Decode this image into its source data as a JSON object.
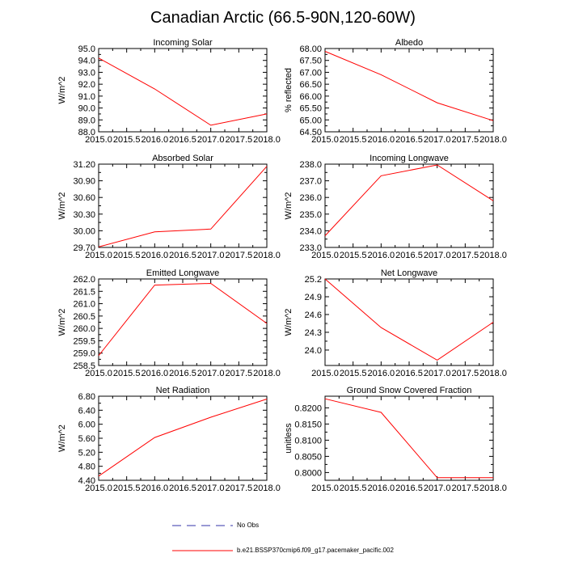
{
  "title": "Canadian Arctic (66.5-90N,120-60W)",
  "colors": {
    "model": "#ff0000",
    "obs": "#3333aa",
    "axis": "#000000"
  },
  "legend": [
    {
      "label": "No Obs",
      "style": "dashed",
      "color": "#3333aa"
    },
    {
      "label": "b.e21.BSSP370cmip6.f09_g17.pacemaker_pacific.002",
      "style": "solid",
      "color": "#ff0000"
    }
  ],
  "chart_data": [
    {
      "type": "line",
      "title": "Incoming Solar",
      "ylabel": "W/m^2",
      "x": [
        2015,
        2016,
        2017,
        2018
      ],
      "values": [
        94.2,
        91.6,
        88.55,
        89.5
      ],
      "xlim": [
        2015,
        2018
      ],
      "ylim": [
        88,
        95
      ],
      "xticks": [
        "2015.0",
        "2015.5",
        "2016.0",
        "2016.5",
        "2017.0",
        "2017.5",
        "2018.0"
      ],
      "yticks": [
        "88.0",
        "89.0",
        "90.0",
        "91.0",
        "92.0",
        "93.0",
        "94.0",
        "95.0"
      ]
    },
    {
      "type": "line",
      "title": "Albedo",
      "ylabel": "% reflected",
      "x": [
        2015,
        2016,
        2017,
        2018
      ],
      "values": [
        67.88,
        66.9,
        65.72,
        64.97
      ],
      "xlim": [
        2015,
        2018
      ],
      "ylim": [
        64.5,
        68
      ],
      "xticks": [
        "2015.0",
        "2015.5",
        "2016.0",
        "2016.5",
        "2017.0",
        "2017.5",
        "2018.0"
      ],
      "yticks": [
        "64.50",
        "65.00",
        "65.50",
        "66.00",
        "66.50",
        "67.00",
        "67.50",
        "68.00"
      ]
    },
    {
      "type": "line",
      "title": "Absorbed Solar",
      "ylabel": "W/m^2",
      "x": [
        2015,
        2016,
        2017,
        2018
      ],
      "values": [
        29.71,
        29.98,
        30.03,
        31.16
      ],
      "xlim": [
        2015,
        2018
      ],
      "ylim": [
        29.7,
        31.2
      ],
      "xticks": [
        "2015.0",
        "2015.5",
        "2016.0",
        "2016.5",
        "2017.0",
        "2017.5",
        "2018.0"
      ],
      "yticks": [
        "29.70",
        "30.00",
        "30.30",
        "30.60",
        "30.90",
        "31.20"
      ]
    },
    {
      "type": "line",
      "title": "Incoming Longwave",
      "ylabel": "W/m^2",
      "x": [
        2015,
        2016,
        2017,
        2018
      ],
      "values": [
        233.7,
        237.3,
        237.95,
        235.8
      ],
      "xlim": [
        2015,
        2018
      ],
      "ylim": [
        233,
        238
      ],
      "xticks": [
        "2015.0",
        "2015.5",
        "2016.0",
        "2016.5",
        "2017.0",
        "2017.5",
        "2018.0"
      ],
      "yticks": [
        "233.0",
        "234.0",
        "235.0",
        "236.0",
        "237.0",
        "238.0"
      ]
    },
    {
      "type": "line",
      "title": "Emitted Longwave",
      "ylabel": "W/m^2",
      "x": [
        2015,
        2016,
        2017,
        2018
      ],
      "values": [
        258.9,
        261.75,
        261.82,
        260.2
      ],
      "xlim": [
        2015,
        2018
      ],
      "ylim": [
        258.5,
        262
      ],
      "xticks": [
        "2015.0",
        "2015.5",
        "2016.0",
        "2016.5",
        "2017.0",
        "2017.5",
        "2018.0"
      ],
      "yticks": [
        "258.5",
        "259.0",
        "259.5",
        "260.0",
        "260.5",
        "261.0",
        "261.5",
        "262.0"
      ]
    },
    {
      "type": "line",
      "title": "Net Longwave",
      "ylabel": "W/m^2",
      "x": [
        2015,
        2016,
        2017,
        2018
      ],
      "values": [
        25.2,
        24.38,
        23.83,
        24.47
      ],
      "xlim": [
        2015,
        2018
      ],
      "ylim": [
        23.74,
        25.2
      ],
      "xticks": [
        "2015.0",
        "2015.5",
        "2016.0",
        "2016.5",
        "2017.0",
        "2017.5",
        "2018.0"
      ],
      "yticks": [
        "24.0",
        "24.3",
        "24.6",
        "24.9",
        "25.2"
      ],
      "ytickvals": [
        24.0,
        24.3,
        24.6,
        24.9,
        25.2
      ]
    },
    {
      "type": "line",
      "title": "Net Radiation",
      "ylabel": "W/m^2",
      "x": [
        2015,
        2016,
        2017,
        2018
      ],
      "values": [
        4.52,
        5.62,
        6.2,
        6.72
      ],
      "xlim": [
        2015,
        2018
      ],
      "ylim": [
        4.4,
        6.8
      ],
      "xticks": [
        "2015.0",
        "2015.5",
        "2016.0",
        "2016.5",
        "2017.0",
        "2017.5",
        "2018.0"
      ],
      "yticks": [
        "4.40",
        "4.80",
        "5.20",
        "5.60",
        "6.00",
        "6.40",
        "6.80"
      ]
    },
    {
      "type": "line",
      "title": "Ground Snow Covered Fraction",
      "ylabel": "unitless",
      "x": [
        2015,
        2016,
        2017,
        2018
      ],
      "values": [
        0.8228,
        0.8186,
        0.7984,
        0.7984
      ],
      "xlim": [
        2015,
        2018
      ],
      "ylim": [
        0.7976,
        0.8236
      ],
      "xticks": [
        "2015.0",
        "2015.5",
        "2016.0",
        "2016.5",
        "2017.0",
        "2017.5",
        "2018.0"
      ],
      "yticks": [
        "0.8000",
        "0.8050",
        "0.8100",
        "0.8150",
        "0.8200"
      ],
      "ytickvals": [
        0.8,
        0.805,
        0.81,
        0.815,
        0.82
      ]
    }
  ]
}
